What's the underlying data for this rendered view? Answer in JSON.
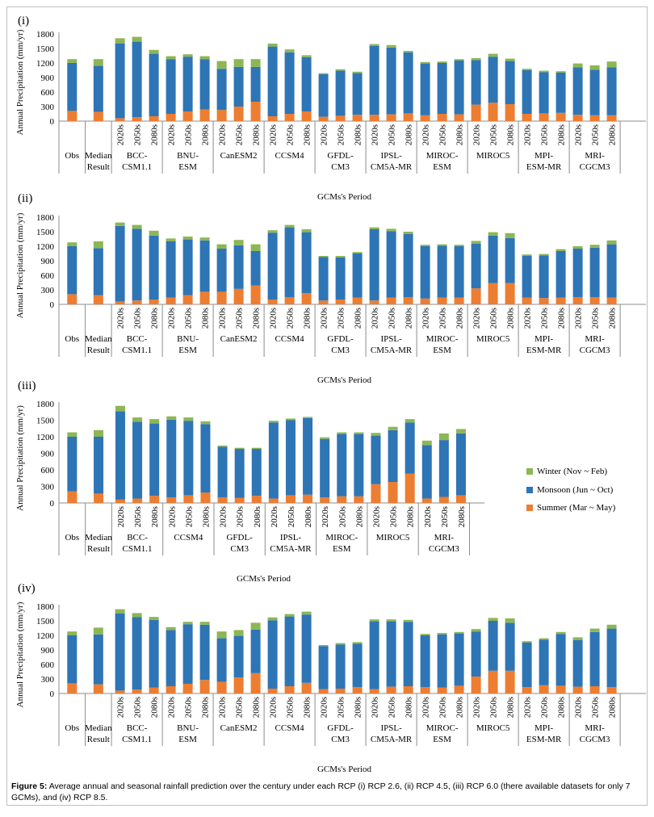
{
  "colors": {
    "summer": "#ED7D31",
    "monsoon": "#2E75B6",
    "winter": "#8DB654"
  },
  "caption": {
    "label": "Figure 5:",
    "text": "Average annual and seasonal rainfall prediction over the century under each RCP (i) RCP 2.6, (ii) RCP 4.5, (iii) RCP 6.0 (there available datasets for only 7 GCMs), and (iv) RCP 8.5."
  },
  "legend": {
    "winter": "Winter (Nov ~ Feb)",
    "monsoon": "Monsoon (Jun ~ Oct)",
    "summer": "Summer (Mar ~ May)"
  },
  "chart_data": [
    {
      "type": "bar",
      "stacked": true,
      "panel_label": "(i)",
      "ylabel": "Annual Precipitation (mm/yr)",
      "xlabel": "GCMs's Period",
      "ylim": [
        0,
        1800
      ],
      "yticks": [
        "0",
        "300",
        "600",
        "900",
        "1200",
        "1500",
        "1800"
      ],
      "groups": [
        {
          "name": "Obs",
          "periods": [
            ""
          ],
          "summer": [
            210
          ],
          "monsoon": [
            990
          ],
          "winter": [
            80
          ]
        },
        {
          "name": "Median Result",
          "periods": [
            ""
          ],
          "summer": [
            190
          ],
          "monsoon": [
            950
          ],
          "winter": [
            140
          ]
        },
        {
          "name": "BCC- CSM1.1",
          "periods": [
            "2020s",
            "2050s",
            "2080s"
          ],
          "summer": [
            60,
            80,
            100
          ],
          "monsoon": [
            1540,
            1560,
            1290
          ],
          "winter": [
            110,
            100,
            80
          ]
        },
        {
          "name": "BNU- ESM",
          "periods": [
            "2020s",
            "2050s",
            "2080s"
          ],
          "summer": [
            150,
            200,
            240
          ],
          "monsoon": [
            1130,
            1130,
            1040
          ],
          "winter": [
            60,
            50,
            60
          ]
        },
        {
          "name": "CanESM2",
          "periods": [
            "2020s",
            "2050s",
            "2080s"
          ],
          "summer": [
            230,
            300,
            400
          ],
          "monsoon": [
            850,
            820,
            720
          ],
          "winter": [
            160,
            160,
            160
          ]
        },
        {
          "name": "CCSM4",
          "periods": [
            "2020s",
            "2050s",
            "2080s"
          ],
          "summer": [
            100,
            150,
            200
          ],
          "monsoon": [
            1440,
            1270,
            1120
          ],
          "winter": [
            60,
            60,
            40
          ]
        },
        {
          "name": "GFDL- CM3",
          "periods": [
            "2020s",
            "2050s",
            "2080s"
          ],
          "summer": [
            90,
            110,
            130
          ],
          "monsoon": [
            880,
            930,
            860
          ],
          "winter": [
            20,
            30,
            30
          ]
        },
        {
          "name": "IPSL- CM5A-MR",
          "periods": [
            "2020s",
            "2050s",
            "2080s"
          ],
          "summer": [
            130,
            140,
            160
          ],
          "monsoon": [
            1420,
            1380,
            1260
          ],
          "winter": [
            40,
            50,
            30
          ]
        },
        {
          "name": "MIROC- ESM",
          "periods": [
            "2020s",
            "2050s",
            "2080s"
          ],
          "summer": [
            120,
            150,
            140
          ],
          "monsoon": [
            1070,
            1050,
            1110
          ],
          "winter": [
            30,
            30,
            30
          ]
        },
        {
          "name": "MIROC5",
          "periods": [
            "2020s",
            "2050s",
            "2080s"
          ],
          "summer": [
            340,
            380,
            350
          ],
          "monsoon": [
            920,
            950,
            890
          ],
          "winter": [
            40,
            60,
            50
          ]
        },
        {
          "name": "MPI- ESM-MR",
          "periods": [
            "2020s",
            "2050s",
            "2080s"
          ],
          "summer": [
            150,
            160,
            170
          ],
          "monsoon": [
            900,
            850,
            830
          ],
          "winter": [
            30,
            30,
            30
          ]
        },
        {
          "name": "MRI- CGCM3",
          "periods": [
            "2020s",
            "2050s",
            "2080s"
          ],
          "summer": [
            130,
            120,
            120
          ],
          "monsoon": [
            980,
            940,
            990
          ],
          "winter": [
            80,
            90,
            120
          ]
        }
      ]
    },
    {
      "type": "bar",
      "stacked": true,
      "panel_label": "(ii)",
      "ylabel": "Annual Precipitation (mm/yr)",
      "xlabel": "GCMs's Period",
      "ylim": [
        0,
        1800
      ],
      "yticks": [
        "0",
        "300",
        "600",
        "900",
        "1200",
        "1500",
        "1800"
      ],
      "groups": [
        {
          "name": "Obs",
          "periods": [
            ""
          ],
          "summer": [
            210
          ],
          "monsoon": [
            990
          ],
          "winter": [
            80
          ]
        },
        {
          "name": "Median Result",
          "periods": [
            ""
          ],
          "summer": [
            190
          ],
          "monsoon": [
            970
          ],
          "winter": [
            140
          ]
        },
        {
          "name": "BCC- CSM1.1",
          "periods": [
            "2020s",
            "2050s",
            "2080s"
          ],
          "summer": [
            60,
            80,
            100
          ],
          "monsoon": [
            1560,
            1480,
            1320
          ],
          "winter": [
            70,
            80,
            100
          ]
        },
        {
          "name": "BNU- ESM",
          "periods": [
            "2020s",
            "2050s",
            "2080s"
          ],
          "summer": [
            140,
            190,
            260
          ],
          "monsoon": [
            1160,
            1150,
            1060
          ],
          "winter": [
            60,
            60,
            60
          ]
        },
        {
          "name": "CanESM2",
          "periods": [
            "2020s",
            "2050s",
            "2080s"
          ],
          "summer": [
            260,
            320,
            390
          ],
          "monsoon": [
            890,
            900,
            710
          ],
          "winter": [
            90,
            110,
            140
          ]
        },
        {
          "name": "CCSM4",
          "periods": [
            "2020s",
            "2050s",
            "2080s"
          ],
          "summer": [
            100,
            150,
            230
          ],
          "monsoon": [
            1380,
            1440,
            1260
          ],
          "winter": [
            50,
            50,
            60
          ]
        },
        {
          "name": "GFDL- CM3",
          "periods": [
            "2020s",
            "2050s",
            "2080s"
          ],
          "summer": [
            80,
            100,
            140
          ],
          "monsoon": [
            900,
            870,
            910
          ],
          "winter": [
            20,
            30,
            30
          ]
        },
        {
          "name": "IPSL- CM5A-MR",
          "periods": [
            "2020s",
            "2050s",
            "2080s"
          ],
          "summer": [
            80,
            140,
            150
          ],
          "monsoon": [
            1470,
            1370,
            1300
          ],
          "winter": [
            40,
            50,
            50
          ]
        },
        {
          "name": "MIROC- ESM",
          "periods": [
            "2020s",
            "2050s",
            "2080s"
          ],
          "summer": [
            120,
            140,
            140
          ],
          "monsoon": [
            1080,
            1070,
            1060
          ],
          "winter": [
            30,
            30,
            30
          ]
        },
        {
          "name": "MIROC5",
          "periods": [
            "2020s",
            "2050s",
            "2080s"
          ],
          "summer": [
            330,
            440,
            440
          ],
          "monsoon": [
            920,
            980,
            930
          ],
          "winter": [
            60,
            70,
            100
          ]
        },
        {
          "name": "MPI- ESM-MR",
          "periods": [
            "2020s",
            "2050s",
            "2080s"
          ],
          "summer": [
            140,
            130,
            140
          ],
          "monsoon": [
            860,
            880,
            960
          ],
          "winter": [
            30,
            30,
            40
          ]
        },
        {
          "name": "MRI- CGCM3",
          "periods": [
            "2020s",
            "2050s",
            "2080s"
          ],
          "summer": [
            150,
            150,
            140
          ],
          "monsoon": [
            1000,
            1020,
            1100
          ],
          "winter": [
            50,
            60,
            80
          ]
        }
      ]
    },
    {
      "type": "bar",
      "stacked": true,
      "panel_label": "(iii)",
      "ylabel": "Annual Precipitation (mm/yr)",
      "xlabel": "GCMs's Period",
      "ylim": [
        0,
        1800
      ],
      "yticks": [
        "0",
        "300",
        "600",
        "900",
        "1200",
        "1500",
        "1800"
      ],
      "legend_position": "right",
      "groups": [
        {
          "name": "Obs",
          "periods": [
            ""
          ],
          "summer": [
            210
          ],
          "monsoon": [
            990
          ],
          "winter": [
            80
          ]
        },
        {
          "name": "Median Result",
          "periods": [
            ""
          ],
          "summer": [
            170
          ],
          "monsoon": [
            1030
          ],
          "winter": [
            120
          ]
        },
        {
          "name": "BCC- CSM1.1",
          "periods": [
            "2020s",
            "2050s",
            "2080s"
          ],
          "summer": [
            60,
            80,
            130
          ],
          "monsoon": [
            1600,
            1390,
            1310
          ],
          "winter": [
            100,
            80,
            80
          ]
        },
        {
          "name": "CCSM4",
          "periods": [
            "2020s",
            "2050s",
            "2080s"
          ],
          "summer": [
            100,
            140,
            190
          ],
          "monsoon": [
            1410,
            1350,
            1240
          ],
          "winter": [
            60,
            60,
            50
          ]
        },
        {
          "name": "GFDL- CM3",
          "periods": [
            "2020s",
            "2050s",
            "2080s"
          ],
          "summer": [
            100,
            90,
            130
          ],
          "monsoon": [
            920,
            890,
            850
          ],
          "winter": [
            20,
            20,
            20
          ]
        },
        {
          "name": "IPSL- CM5A-MR",
          "periods": [
            "2020s",
            "2050s",
            "2080s"
          ],
          "summer": [
            80,
            140,
            150
          ],
          "monsoon": [
            1380,
            1360,
            1390
          ],
          "winter": [
            30,
            30,
            20
          ]
        },
        {
          "name": "MIROC- ESM",
          "periods": [
            "2020s",
            "2050s",
            "2080s"
          ],
          "summer": [
            100,
            120,
            120
          ],
          "monsoon": [
            1060,
            1130,
            1130
          ],
          "winter": [
            30,
            30,
            30
          ]
        },
        {
          "name": "MIROC5",
          "periods": [
            "2020s",
            "2050s",
            "2080s"
          ],
          "summer": [
            340,
            380,
            530
          ],
          "monsoon": [
            880,
            940,
            930
          ],
          "winter": [
            50,
            60,
            60
          ]
        },
        {
          "name": "MRI- CGCM3",
          "periods": [
            "2020s",
            "2050s",
            "2080s"
          ],
          "summer": [
            80,
            110,
            140
          ],
          "monsoon": [
            970,
            1030,
            1120
          ],
          "winter": [
            80,
            120,
            80
          ]
        }
      ]
    },
    {
      "type": "bar",
      "stacked": true,
      "panel_label": "(iv)",
      "ylabel": "Annual Precipitation (mm/yr)",
      "xlabel": "GCMs's Period",
      "ylim": [
        0,
        1800
      ],
      "yticks": [
        "0",
        "300",
        "600",
        "900",
        "1200",
        "1500",
        "1800"
      ],
      "groups": [
        {
          "name": "Obs",
          "periods": [
            ""
          ],
          "summer": [
            210
          ],
          "monsoon": [
            990
          ],
          "winter": [
            80
          ]
        },
        {
          "name": "Median Result",
          "periods": [
            ""
          ],
          "summer": [
            190
          ],
          "monsoon": [
            1030
          ],
          "winter": [
            140
          ]
        },
        {
          "name": "BCC- CSM1.1",
          "periods": [
            "2020s",
            "2050s",
            "2080s"
          ],
          "summer": [
            60,
            80,
            120
          ],
          "monsoon": [
            1590,
            1500,
            1400
          ],
          "winter": [
            90,
            80,
            60
          ]
        },
        {
          "name": "BNU- ESM",
          "periods": [
            "2020s",
            "2050s",
            "2080s"
          ],
          "summer": [
            150,
            200,
            280
          ],
          "monsoon": [
            1160,
            1230,
            1140
          ],
          "winter": [
            60,
            50,
            60
          ]
        },
        {
          "name": "CanESM2",
          "periods": [
            "2020s",
            "2050s",
            "2080s"
          ],
          "summer": [
            240,
            330,
            420
          ],
          "monsoon": [
            900,
            860,
            900
          ],
          "winter": [
            140,
            120,
            140
          ]
        },
        {
          "name": "CCSM4",
          "periods": [
            "2020s",
            "2050s",
            "2080s"
          ],
          "summer": [
            100,
            150,
            220
          ],
          "monsoon": [
            1410,
            1440,
            1410
          ],
          "winter": [
            60,
            50,
            60
          ]
        },
        {
          "name": "GFDL- CM3",
          "periods": [
            "2020s",
            "2050s",
            "2080s"
          ],
          "summer": [
            90,
            100,
            130
          ],
          "monsoon": [
            890,
            910,
            900
          ],
          "winter": [
            20,
            30,
            30
          ]
        },
        {
          "name": "IPSL- CM5A-MR",
          "periods": [
            "2020s",
            "2050s",
            "2080s"
          ],
          "summer": [
            90,
            140,
            150
          ],
          "monsoon": [
            1400,
            1350,
            1330
          ],
          "winter": [
            40,
            40,
            40
          ]
        },
        {
          "name": "MIROC- ESM",
          "periods": [
            "2020s",
            "2050s",
            "2080s"
          ],
          "summer": [
            130,
            120,
            160
          ],
          "monsoon": [
            1070,
            1100,
            1080
          ],
          "winter": [
            30,
            30,
            30
          ]
        },
        {
          "name": "MIROC5",
          "periods": [
            "2020s",
            "2050s",
            "2080s"
          ],
          "summer": [
            350,
            470,
            470
          ],
          "monsoon": [
            930,
            1030,
            990
          ],
          "winter": [
            50,
            60,
            90
          ]
        },
        {
          "name": "MPI- ESM-MR",
          "periods": [
            "2020s",
            "2050s",
            "2080s"
          ],
          "summer": [
            130,
            170,
            160
          ],
          "monsoon": [
            920,
            940,
            1070
          ],
          "winter": [
            30,
            30,
            40
          ]
        },
        {
          "name": "MRI- CGCM3",
          "periods": [
            "2020s",
            "2050s",
            "2080s"
          ],
          "summer": [
            140,
            150,
            130
          ],
          "monsoon": [
            960,
            1120,
            1210
          ],
          "winter": [
            60,
            70,
            80
          ]
        }
      ]
    }
  ]
}
